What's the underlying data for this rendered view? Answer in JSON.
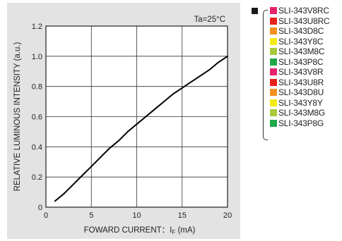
{
  "chart_data": {
    "type": "line",
    "title": "",
    "annotation": "Ta=25°C",
    "xlabel": "FOWARD CURRENT：I",
    "xlabel_sub": "F",
    "xlabel_unit": " (mA)",
    "ylabel": "RELATIVE LUMINOUS INTENSITY (a.u.)",
    "xlim": [
      0,
      20
    ],
    "ylim": [
      0,
      1.2
    ],
    "x_ticks": [
      "0",
      "5",
      "10",
      "15",
      "20"
    ],
    "y_ticks": [
      "0",
      "0.2",
      "0.4",
      "0.6",
      "0.8",
      "1.0",
      "1.2"
    ],
    "grid": true,
    "series": [
      {
        "x": [
          1,
          2,
          3,
          4,
          5,
          6,
          7,
          8,
          9,
          10,
          11,
          12,
          13,
          14,
          15,
          16,
          17,
          18,
          19,
          20
        ],
        "values": [
          0.04,
          0.09,
          0.15,
          0.21,
          0.27,
          0.33,
          0.39,
          0.44,
          0.5,
          0.55,
          0.6,
          0.65,
          0.7,
          0.75,
          0.79,
          0.83,
          0.87,
          0.91,
          0.96,
          1.0
        ]
      }
    ]
  },
  "legend": {
    "items": [
      {
        "label": "SLI-343V8RC",
        "color": "#e6246e"
      },
      {
        "label": "SLI-343U8RC",
        "color": "#e8211c"
      },
      {
        "label": "SLI-343D8C",
        "color": "#f39020"
      },
      {
        "label": "SLI-343Y8C",
        "color": "#f5ea14"
      },
      {
        "label": "SLI-343M8C",
        "color": "#a8c93a"
      },
      {
        "label": "SLI-343P8C",
        "color": "#1fa84a"
      },
      {
        "label": "SLI-343V8R",
        "color": "#e6246e"
      },
      {
        "label": "SLI-343U8R",
        "color": "#e8211c"
      },
      {
        "label": "SLI-343D8U",
        "color": "#f39020"
      },
      {
        "label": "SLI-343Y8Y",
        "color": "#f5ea14"
      },
      {
        "label": "SLI-343M8G",
        "color": "#a8c93a"
      },
      {
        "label": "SLI-343P8G",
        "color": "#1fa84a"
      }
    ]
  }
}
